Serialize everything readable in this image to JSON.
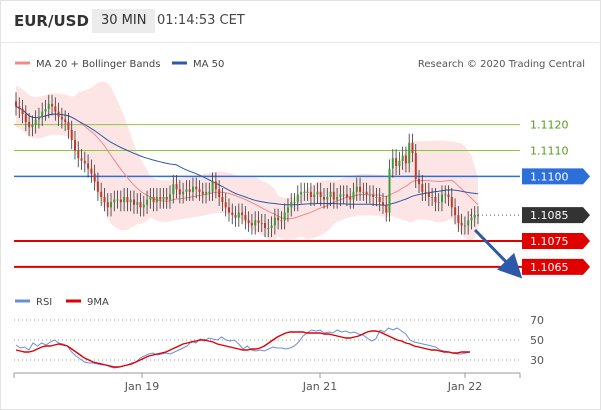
{
  "header": {
    "symbol": "EUR/USD",
    "timeframe": "30 MIN",
    "time": "01:14:53 CET"
  },
  "legend_main": [
    {
      "label": "MA 20 + Bollinger Bands",
      "color": "#f08a8a"
    },
    {
      "label": "MA 50",
      "color": "#2d5aa8"
    }
  ],
  "legend_rsi": [
    {
      "label": "RSI",
      "color": "#6a8fd8"
    },
    {
      "label": "9MA",
      "color": "#e00000"
    }
  ],
  "source": "Research © 2020 Trading Central",
  "colors": {
    "green_line": "#8cc63f",
    "blue_line": "#2d6fd8",
    "red_line": "#e00000",
    "pivot_dark": "#333333",
    "arrow": "#2d5aa8",
    "candle_up": "#3a9a3a",
    "candle_down": "#c0392b"
  },
  "chart_data": [
    {
      "type": "candlestick",
      "ylim": [
        1.1058,
        1.1138
      ],
      "x_ticks": [
        "Jan 19",
        "Jan 21",
        "Jan 22"
      ],
      "levels": [
        {
          "value": 1.112,
          "label": "1.1120",
          "style": "green"
        },
        {
          "value": 1.111,
          "label": "1.1110",
          "style": "green"
        },
        {
          "value": 1.11,
          "label": "1.1100",
          "style": "blue"
        },
        {
          "value": 1.1085,
          "label": "1.1085",
          "style": "pivot"
        },
        {
          "value": 1.1075,
          "label": "1.1075",
          "style": "red"
        },
        {
          "value": 1.1065,
          "label": "1.1065",
          "style": "red"
        }
      ],
      "closes": [
        1.1127,
        1.1126,
        1.1124,
        1.1121,
        1.1119,
        1.112,
        1.1122,
        1.1123,
        1.1125,
        1.1126,
        1.1128,
        1.1127,
        1.1125,
        1.1123,
        1.1122,
        1.1121,
        1.1118,
        1.1114,
        1.111,
        1.1107,
        1.1106,
        1.1105,
        1.1103,
        1.1101,
        1.1098,
        1.1094,
        1.1092,
        1.109,
        1.1088,
        1.109,
        1.1091,
        1.1091,
        1.109,
        1.1092,
        1.109,
        1.1091,
        1.1089,
        1.109,
        1.1088,
        1.1089,
        1.1091,
        1.1092,
        1.109,
        1.1092,
        1.1091,
        1.1092,
        1.1091,
        1.1093,
        1.1097,
        1.1095,
        1.1093,
        1.1094,
        1.1095,
        1.1094,
        1.1096,
        1.1095,
        1.1094,
        1.1093,
        1.1094,
        1.1094,
        1.1098,
        1.1095,
        1.1092,
        1.109,
        1.1088,
        1.1086,
        1.1085,
        1.1084,
        1.1086,
        1.1085,
        1.1083,
        1.1082,
        1.1081,
        1.1083,
        1.1082,
        1.1082,
        1.108,
        1.108,
        1.1081,
        1.1084,
        1.1083,
        1.1083,
        1.1086,
        1.1088,
        1.109,
        1.109,
        1.1093,
        1.1094,
        1.1094,
        1.1094,
        1.1092,
        1.1093,
        1.1094,
        1.1092,
        1.1091,
        1.1092,
        1.1094,
        1.1091,
        1.1092,
        1.1093,
        1.1093,
        1.1092,
        1.1091,
        1.1094,
        1.1096,
        1.1094,
        1.1094,
        1.1093,
        1.1093,
        1.1092,
        1.1092,
        1.109,
        1.1089,
        1.1086,
        1.1103,
        1.1107,
        1.1104,
        1.1106,
        1.1108,
        1.1105,
        1.1113,
        1.1109,
        1.1099,
        1.1097,
        1.1094,
        1.1094,
        1.1092,
        1.1092,
        1.109,
        1.109,
        1.1093,
        1.1093,
        1.1092,
        1.1088,
        1.1085,
        1.1082,
        1.1081,
        1.1081,
        1.1083,
        1.1084,
        1.1085,
        1.1085
      ],
      "series": [
        {
          "name": "MA 20 + Bollinger Bands"
        },
        {
          "name": "MA 50"
        }
      ]
    },
    {
      "type": "line",
      "ylim": [
        20,
        80
      ],
      "y_ticks": [
        70,
        50,
        30
      ],
      "series": [
        {
          "name": "RSI",
          "values": [
            45,
            42,
            43,
            40,
            47,
            44,
            47,
            45,
            48,
            50,
            47,
            46,
            44,
            38,
            34,
            31,
            28,
            27,
            27,
            26,
            25,
            25,
            23,
            22,
            23,
            24,
            25,
            27,
            28,
            32,
            34,
            36,
            37,
            35,
            36,
            37,
            36,
            38,
            40,
            42,
            44,
            49,
            47,
            51,
            49,
            52,
            51,
            50,
            53,
            50,
            49,
            50,
            46,
            41,
            44,
            40,
            39,
            40,
            39,
            41,
            43,
            42,
            42,
            41,
            42,
            44,
            48,
            54,
            57,
            60,
            59,
            60,
            57,
            58,
            57,
            60,
            58,
            59,
            57,
            58,
            56,
            55,
            52,
            49,
            51,
            60,
            58,
            62,
            60,
            62,
            59,
            56,
            50,
            48,
            47,
            46,
            45,
            44,
            43,
            40,
            39,
            38,
            37,
            36,
            36,
            37,
            38
          ]
        },
        {
          "name": "9MA",
          "values": [
            40,
            39,
            38,
            38,
            39,
            41,
            43,
            44,
            44,
            45,
            46,
            45,
            44,
            41,
            38,
            35,
            32,
            30,
            28,
            27,
            26,
            25,
            24,
            23,
            23,
            24,
            25,
            26,
            28,
            30,
            32,
            34,
            35,
            36,
            37,
            38,
            40,
            42,
            44,
            46,
            47,
            48,
            49,
            50,
            50,
            49,
            48,
            46,
            45,
            44,
            43,
            42,
            41,
            40,
            40,
            41,
            41,
            42,
            44,
            47,
            50,
            53,
            55,
            57,
            58,
            58,
            58,
            58,
            57,
            57,
            57,
            57,
            56,
            56,
            55,
            54,
            53,
            52,
            52,
            53,
            54,
            56,
            58,
            59,
            59,
            58,
            56,
            54,
            52,
            50,
            49,
            47,
            46,
            44,
            43,
            42,
            41,
            40,
            40,
            39,
            38,
            38,
            37,
            37,
            38,
            38,
            38
          ]
        }
      ]
    }
  ]
}
